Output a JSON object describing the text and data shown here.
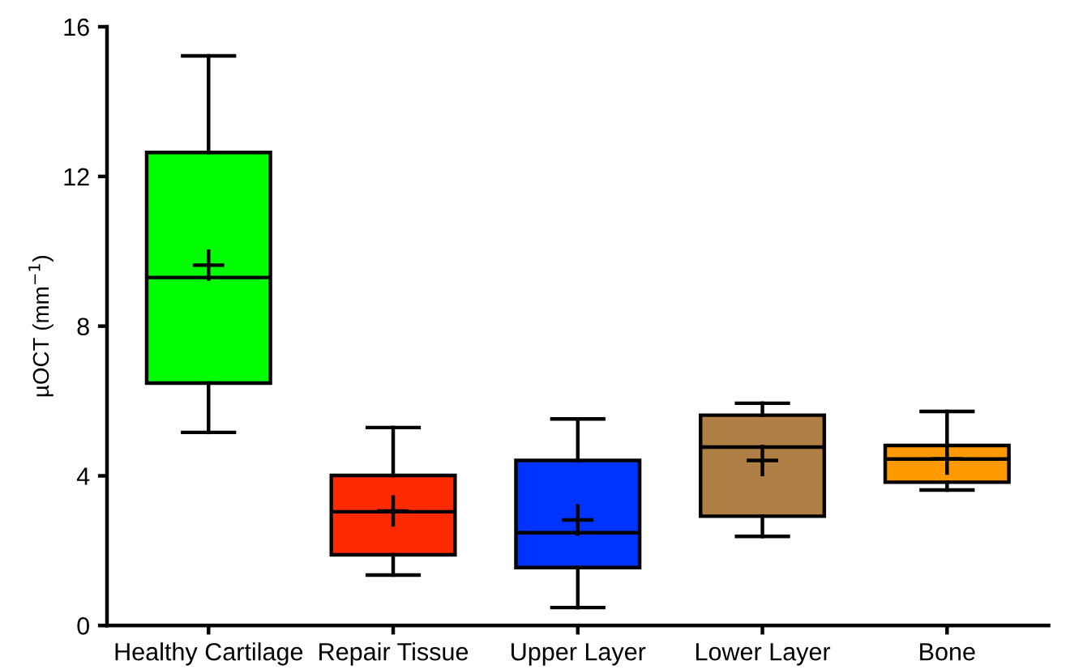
{
  "chart_data": {
    "type": "box",
    "ylabel": "µOCT (mm$^{−1}$)",
    "categories": [
      "Healthy Cartilage",
      "Repair Tissue",
      "Upper Layer",
      "Lower Layer",
      "Bone"
    ],
    "colors": [
      "#00ff00",
      "#ff2a00",
      "#0033ff",
      "#b07f45",
      "#ff9900"
    ],
    "boxes": [
      {
        "low": 5.16,
        "q1": 6.48,
        "median": 9.3,
        "q3": 12.64,
        "high": 15.22,
        "mean": 9.63
      },
      {
        "low": 1.35,
        "q1": 1.89,
        "median": 3.04,
        "q3": 4.01,
        "high": 5.29,
        "mean": 3.06
      },
      {
        "low": 0.48,
        "q1": 1.55,
        "median": 2.48,
        "q3": 4.41,
        "high": 5.52,
        "mean": 2.82
      },
      {
        "low": 2.38,
        "q1": 2.92,
        "median": 4.77,
        "q3": 5.62,
        "high": 5.94,
        "mean": 4.41
      },
      {
        "low": 3.62,
        "q1": 3.83,
        "median": 4.45,
        "q3": 4.81,
        "high": 5.72,
        "mean": 4.45
      }
    ],
    "ylim": [
      0,
      16
    ],
    "yticks": [
      0,
      4,
      8,
      12,
      16
    ],
    "grid": false,
    "marker": "cross"
  }
}
